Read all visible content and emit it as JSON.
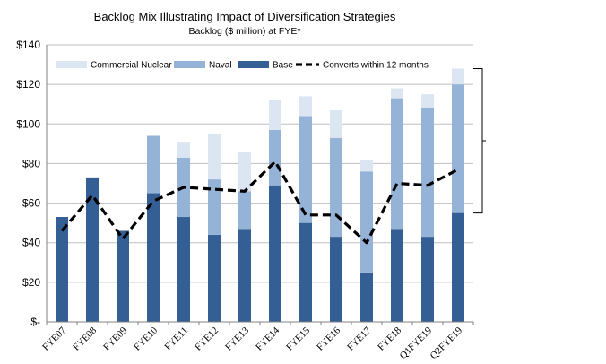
{
  "chart_data": {
    "type": "bar",
    "stacked": true,
    "title": "Backlog Mix Illustrating Impact of Diversification Strategies",
    "subtitle": "Backlog ($ million) at FYE*",
    "categories": [
      "FYE07",
      "FYE08",
      "FYE09",
      "FYE10",
      "FYE11",
      "FYE12",
      "FYE13",
      "FYE14",
      "FYE15",
      "FYE16",
      "FYE17",
      "FYE18",
      "Q1FYE19",
      "Q2FYE19"
    ],
    "series": [
      {
        "name": "Base",
        "color": "#345F94",
        "values": [
          53,
          73,
          46,
          65,
          53,
          44,
          47,
          69,
          50,
          43,
          25,
          47,
          43,
          55
        ]
      },
      {
        "name": "Naval",
        "color": "#95B3D7",
        "values": [
          0,
          0,
          0,
          29,
          30,
          28,
          19,
          28,
          54,
          50,
          51,
          66,
          65,
          65
        ]
      },
      {
        "name": "Commercial Nuclear",
        "color": "#DCE6F2",
        "values": [
          0,
          0,
          0,
          0,
          8,
          23,
          20,
          15,
          10,
          14,
          6,
          5,
          7,
          8
        ]
      }
    ],
    "line": {
      "name": "Converts within 12 months",
      "color": "#000000",
      "style": "dashed",
      "values": [
        46,
        64,
        42,
        61,
        68,
        67,
        66,
        81,
        54,
        54,
        40,
        70,
        69,
        77
      ]
    },
    "legend_order": [
      "Commercial Nuclear",
      "Naval",
      "Base",
      "Converts within 12 months"
    ],
    "legend_position": "top",
    "ylim": [
      0,
      140
    ],
    "yticks": [
      {
        "value": 0,
        "label": "$-"
      },
      {
        "value": 20,
        "label": "$20"
      },
      {
        "value": 40,
        "label": "$40"
      },
      {
        "value": 60,
        "label": "$60"
      },
      {
        "value": 80,
        "label": "$80"
      },
      {
        "value": 100,
        "label": "$100"
      },
      {
        "value": 120,
        "label": "$120"
      },
      {
        "value": 140,
        "label": "$140"
      }
    ],
    "bracket": {
      "from": 55,
      "to": 128
    },
    "grid": "horizontal"
  }
}
